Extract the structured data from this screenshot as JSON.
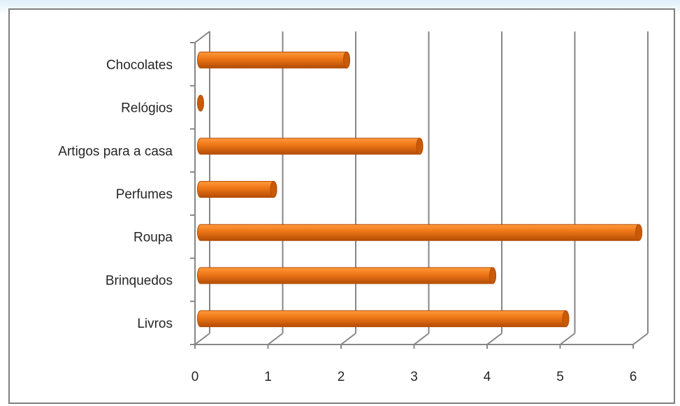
{
  "chart_data": {
    "type": "bar",
    "orientation": "horizontal",
    "style": "3d-cylinder",
    "categories": [
      "Chocolates",
      "Relógios",
      "Artigos para a casa",
      "Perfumes",
      "Roupa",
      "Brinquedos",
      "Livros"
    ],
    "values": [
      2,
      0,
      3,
      1,
      6,
      4,
      5
    ],
    "x_ticks": [
      0,
      1,
      2,
      3,
      4,
      5,
      6
    ],
    "xlim": [
      0,
      6
    ],
    "grid": "vertical major gridlines",
    "legend": "none",
    "title": "",
    "xlabel": "",
    "ylabel": "",
    "colors": {
      "bar": "#f07818",
      "bar_light": "#ff9a3c",
      "bar_dark": "#b44d05",
      "bar_cap": "#c85a08",
      "grid": "#868686",
      "frame": "#7f7f7f",
      "text": "#262626"
    }
  }
}
